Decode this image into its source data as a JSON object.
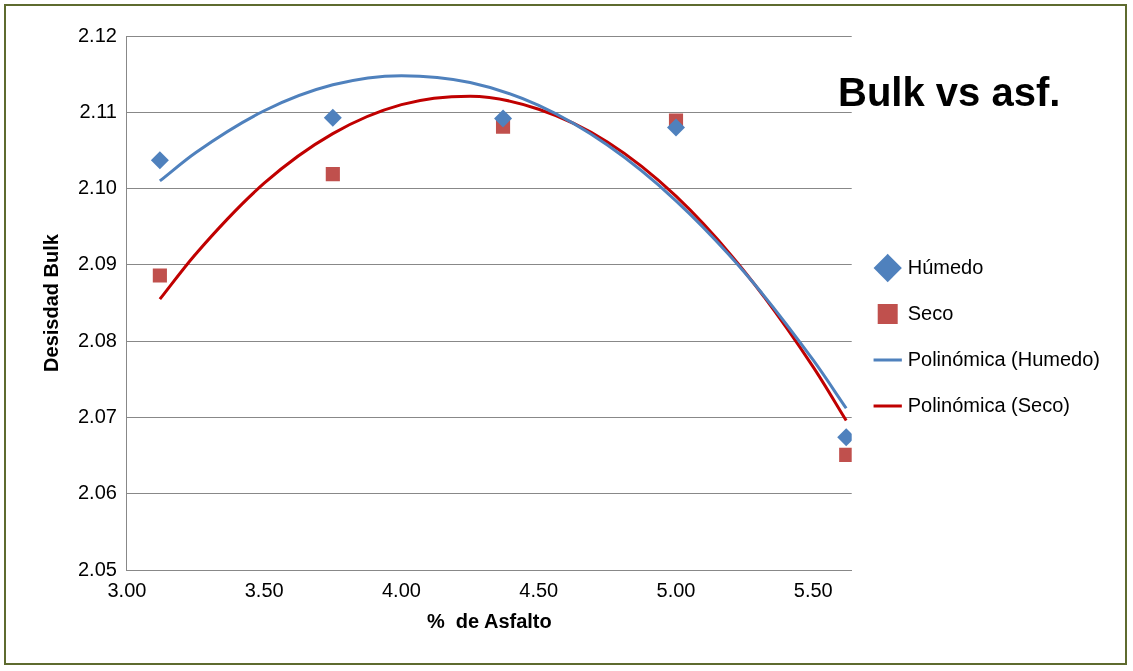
{
  "chart_data": {
    "type": "scatter",
    "title": "Bulk vs asf.",
    "xlabel": "%  de Asfalto",
    "ylabel": "Desisdad Bulk",
    "xlim": [
      3.0,
      5.64
    ],
    "xticks": [
      {
        "value": 3,
        "label": "3.00"
      },
      {
        "value": 3.5,
        "label": "3.50"
      },
      {
        "value": 4,
        "label": "4.00"
      },
      {
        "value": 4.5,
        "label": "4.50"
      },
      {
        "value": 5,
        "label": "5.00"
      },
      {
        "value": 5.5,
        "label": "5.50"
      }
    ],
    "ylim": [
      2.05,
      2.12
    ],
    "yticks": [
      {
        "value": 2.05,
        "label": "2.05"
      },
      {
        "value": 2.06,
        "label": "2.06"
      },
      {
        "value": 2.07,
        "label": "2.07"
      },
      {
        "value": 2.08,
        "label": "2.08"
      },
      {
        "value": 2.09,
        "label": "2.09"
      },
      {
        "value": 2.1,
        "label": "2.10"
      },
      {
        "value": 2.11,
        "label": "2.11"
      },
      {
        "value": 2.12,
        "label": "2.12"
      }
    ],
    "grid": "y",
    "legend": "right",
    "series": [
      {
        "name": "Húmedo",
        "type": "scatter",
        "marker": "diamond",
        "color": "#4f81bd",
        "x": [
          3.12,
          3.75,
          4.37,
          5.0,
          5.62
        ],
        "values": [
          2.1037,
          2.1093,
          2.1092,
          2.108,
          2.0674
        ]
      },
      {
        "name": "Seco",
        "type": "scatter",
        "marker": "square",
        "color": "#c0504d",
        "x": [
          3.12,
          3.75,
          4.37,
          5.0,
          5.62
        ],
        "values": [
          2.0886,
          2.1019,
          2.1081,
          2.1089,
          2.0651
        ]
      },
      {
        "name": "Polinómica (Humedo)",
        "type": "line",
        "marker": "none",
        "color": "#4f81bd",
        "x": [
          3.12,
          3.25,
          3.5,
          3.75,
          4.0,
          4.25,
          4.5,
          4.75,
          5.0,
          5.25,
          5.5,
          5.62
        ],
        "values": [
          2.101,
          2.1047,
          2.1102,
          2.1136,
          2.1148,
          2.1139,
          2.1109,
          2.1057,
          2.0984,
          2.089,
          2.0775,
          2.0712
        ]
      },
      {
        "name": "Polinómica (Seco)",
        "type": "line",
        "marker": "none",
        "color": "#c00000",
        "x": [
          3.12,
          3.25,
          3.5,
          3.75,
          4.0,
          4.25,
          4.5,
          4.75,
          5.0,
          5.25,
          5.5,
          5.62
        ],
        "values": [
          2.0855,
          2.0914,
          2.1007,
          2.1072,
          2.111,
          2.1121,
          2.1104,
          2.1061,
          2.099,
          2.0891,
          2.0766,
          2.0696
        ]
      }
    ]
  }
}
